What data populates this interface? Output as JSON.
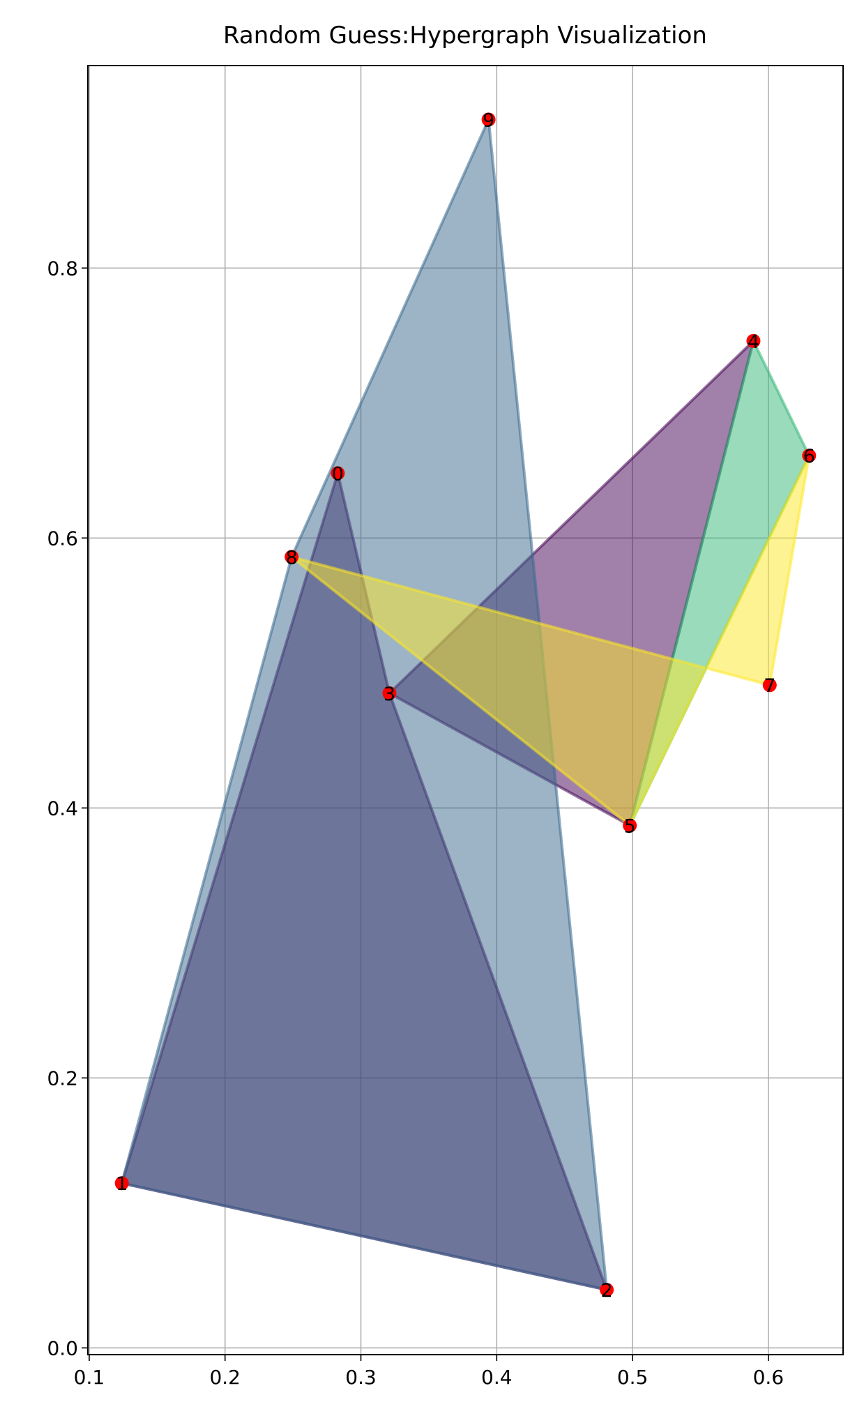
{
  "chart_data": {
    "type": "scatter",
    "title": "Random Guess:Hypergraph Visualization",
    "xlabel": "",
    "ylabel": "",
    "xlim": [
      0.099,
      0.655
    ],
    "ylim": [
      -0.005,
      0.95
    ],
    "xticks": [
      0.1,
      0.2,
      0.3,
      0.4,
      0.5,
      0.6
    ],
    "xtick_labels": [
      "0.1",
      "0.2",
      "0.3",
      "0.4",
      "0.5",
      "0.6"
    ],
    "yticks": [
      0.0,
      0.2,
      0.4,
      0.6,
      0.8
    ],
    "ytick_labels": [
      "0.0",
      "0.2",
      "0.4",
      "0.6",
      "0.8"
    ],
    "grid": true,
    "node_color": "#ff0000",
    "nodes": [
      {
        "id": "0",
        "x": 0.283,
        "y": 0.648
      },
      {
        "id": "1",
        "x": 0.124,
        "y": 0.122
      },
      {
        "id": "2",
        "x": 0.481,
        "y": 0.043
      },
      {
        "id": "3",
        "x": 0.321,
        "y": 0.485
      },
      {
        "id": "4",
        "x": 0.589,
        "y": 0.746
      },
      {
        "id": "5",
        "x": 0.498,
        "y": 0.387
      },
      {
        "id": "6",
        "x": 0.63,
        "y": 0.661
      },
      {
        "id": "7",
        "x": 0.601,
        "y": 0.491
      },
      {
        "id": "8",
        "x": 0.249,
        "y": 0.586
      },
      {
        "id": "9",
        "x": 0.394,
        "y": 0.91
      }
    ],
    "hyperedges": [
      {
        "members": [
          "0",
          "1",
          "2",
          "3"
        ],
        "color": "#440154"
      },
      {
        "members": [
          "3",
          "4",
          "5"
        ],
        "color": "#440154"
      },
      {
        "members": [
          "1",
          "8",
          "9",
          "2"
        ],
        "color": "#3b6a8e"
      },
      {
        "members": [
          "4",
          "6",
          "5"
        ],
        "color": "#35b779"
      },
      {
        "members": [
          "8",
          "7",
          "6",
          "5"
        ],
        "color": "#fde725"
      }
    ]
  }
}
